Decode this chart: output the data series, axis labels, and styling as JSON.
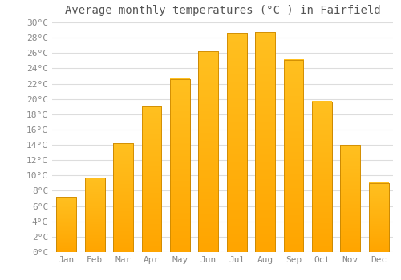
{
  "title": "Average monthly temperatures (°C ) in Fairfield",
  "months": [
    "Jan",
    "Feb",
    "Mar",
    "Apr",
    "May",
    "Jun",
    "Jul",
    "Aug",
    "Sep",
    "Oct",
    "Nov",
    "Dec"
  ],
  "temperatures": [
    7.2,
    9.7,
    14.2,
    19.0,
    22.6,
    26.2,
    28.6,
    28.7,
    25.1,
    19.7,
    14.0,
    9.0
  ],
  "bar_color_top": "#FFC020",
  "bar_color_bottom": "#FFA500",
  "bar_edge_color": "#CC8800",
  "background_color": "#FFFFFF",
  "grid_color": "#DDDDDD",
  "text_color": "#888888",
  "title_color": "#555555",
  "ylim": [
    0,
    30
  ],
  "ytick_step": 2,
  "title_fontsize": 10,
  "tick_fontsize": 8
}
